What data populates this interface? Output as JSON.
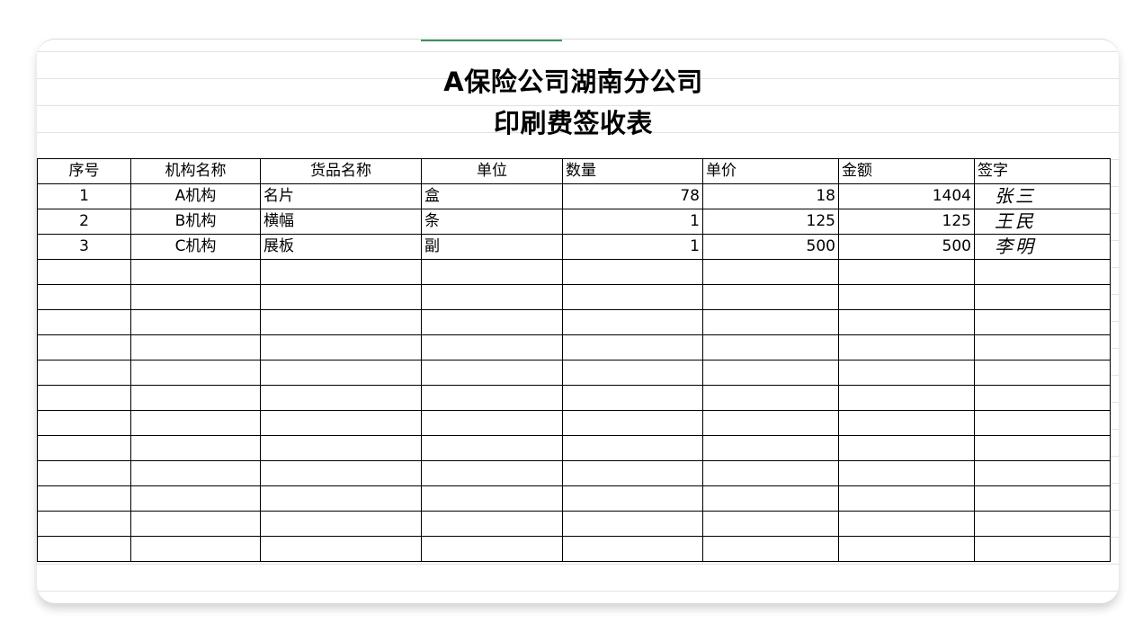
{
  "sheet": {
    "title_line1": "A保险公司湖南分公司",
    "title_line2": "印刷费签收表",
    "columns": [
      "序号",
      "机构名称",
      "货品名称",
      "单位",
      "数量",
      "单价",
      "金额",
      "签字"
    ],
    "rows": [
      [
        "1",
        "A机构",
        "名片",
        "盒",
        "78",
        "18",
        "1404",
        "张三"
      ],
      [
        "2",
        "B机构",
        "横幅",
        "条",
        "1",
        "125",
        "125",
        "王民"
      ],
      [
        "3",
        "C机构",
        "展板",
        "副",
        "1",
        "500",
        "500",
        "李明"
      ]
    ],
    "empty_rows": 12
  }
}
